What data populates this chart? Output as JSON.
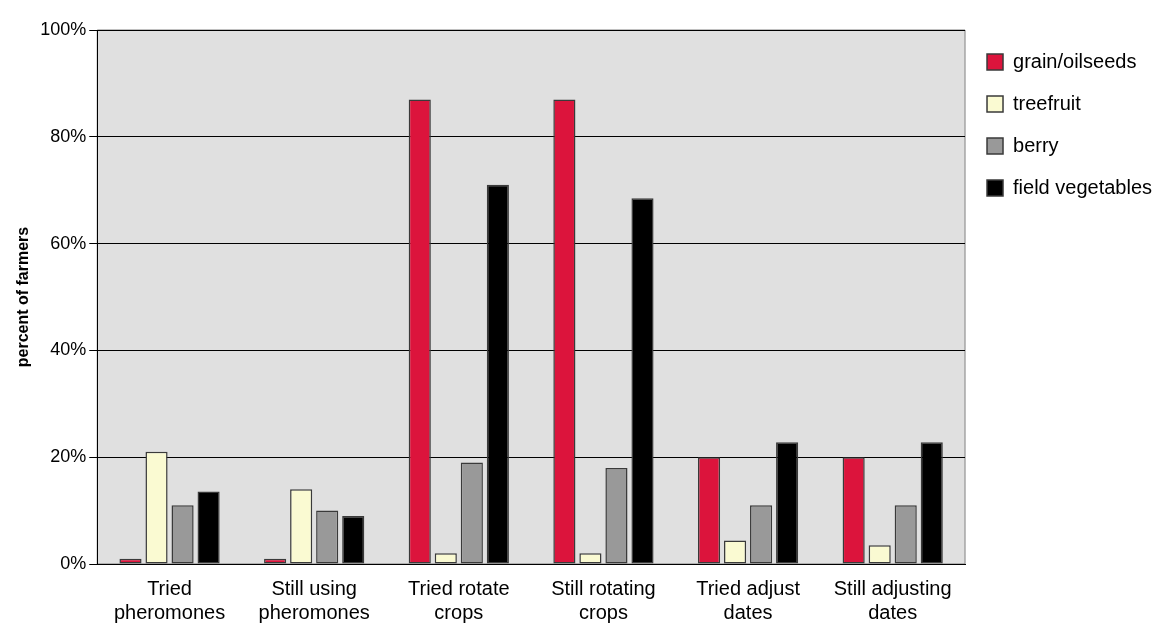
{
  "chart_data": {
    "type": "bar",
    "ylabel": "percent of farmers",
    "categories": [
      "Tried pheromones",
      "Still using pheromones",
      "Tried rotate crops",
      "Still rotating crops",
      "Tried adjust dates",
      "Still adjusting dates"
    ],
    "series": [
      {
        "name": "grain/oilseeds",
        "color": "#dc143c",
        "values": [
          1,
          1,
          87,
          87,
          20,
          20
        ]
      },
      {
        "name": "treefruit",
        "color": "#fafad2",
        "values": [
          21,
          14,
          2,
          2,
          4.4,
          3.5
        ]
      },
      {
        "name": "berry",
        "color": "#999999",
        "values": [
          11,
          10,
          19,
          18,
          11,
          11
        ]
      },
      {
        "name": "field vegetables",
        "color": "#000000",
        "values": [
          13.6,
          9,
          71,
          68.5,
          22.8,
          22.8
        ]
      }
    ],
    "ylim": [
      0,
      100
    ],
    "yticks": [
      {
        "value": 0,
        "label": "0%"
      },
      {
        "value": 20,
        "label": "20%"
      },
      {
        "value": 40,
        "label": "40%"
      },
      {
        "value": 60,
        "label": "60%"
      },
      {
        "value": 80,
        "label": "80%"
      },
      {
        "value": 100,
        "label": "100%"
      }
    ],
    "grid": "y",
    "legend": "top right"
  }
}
